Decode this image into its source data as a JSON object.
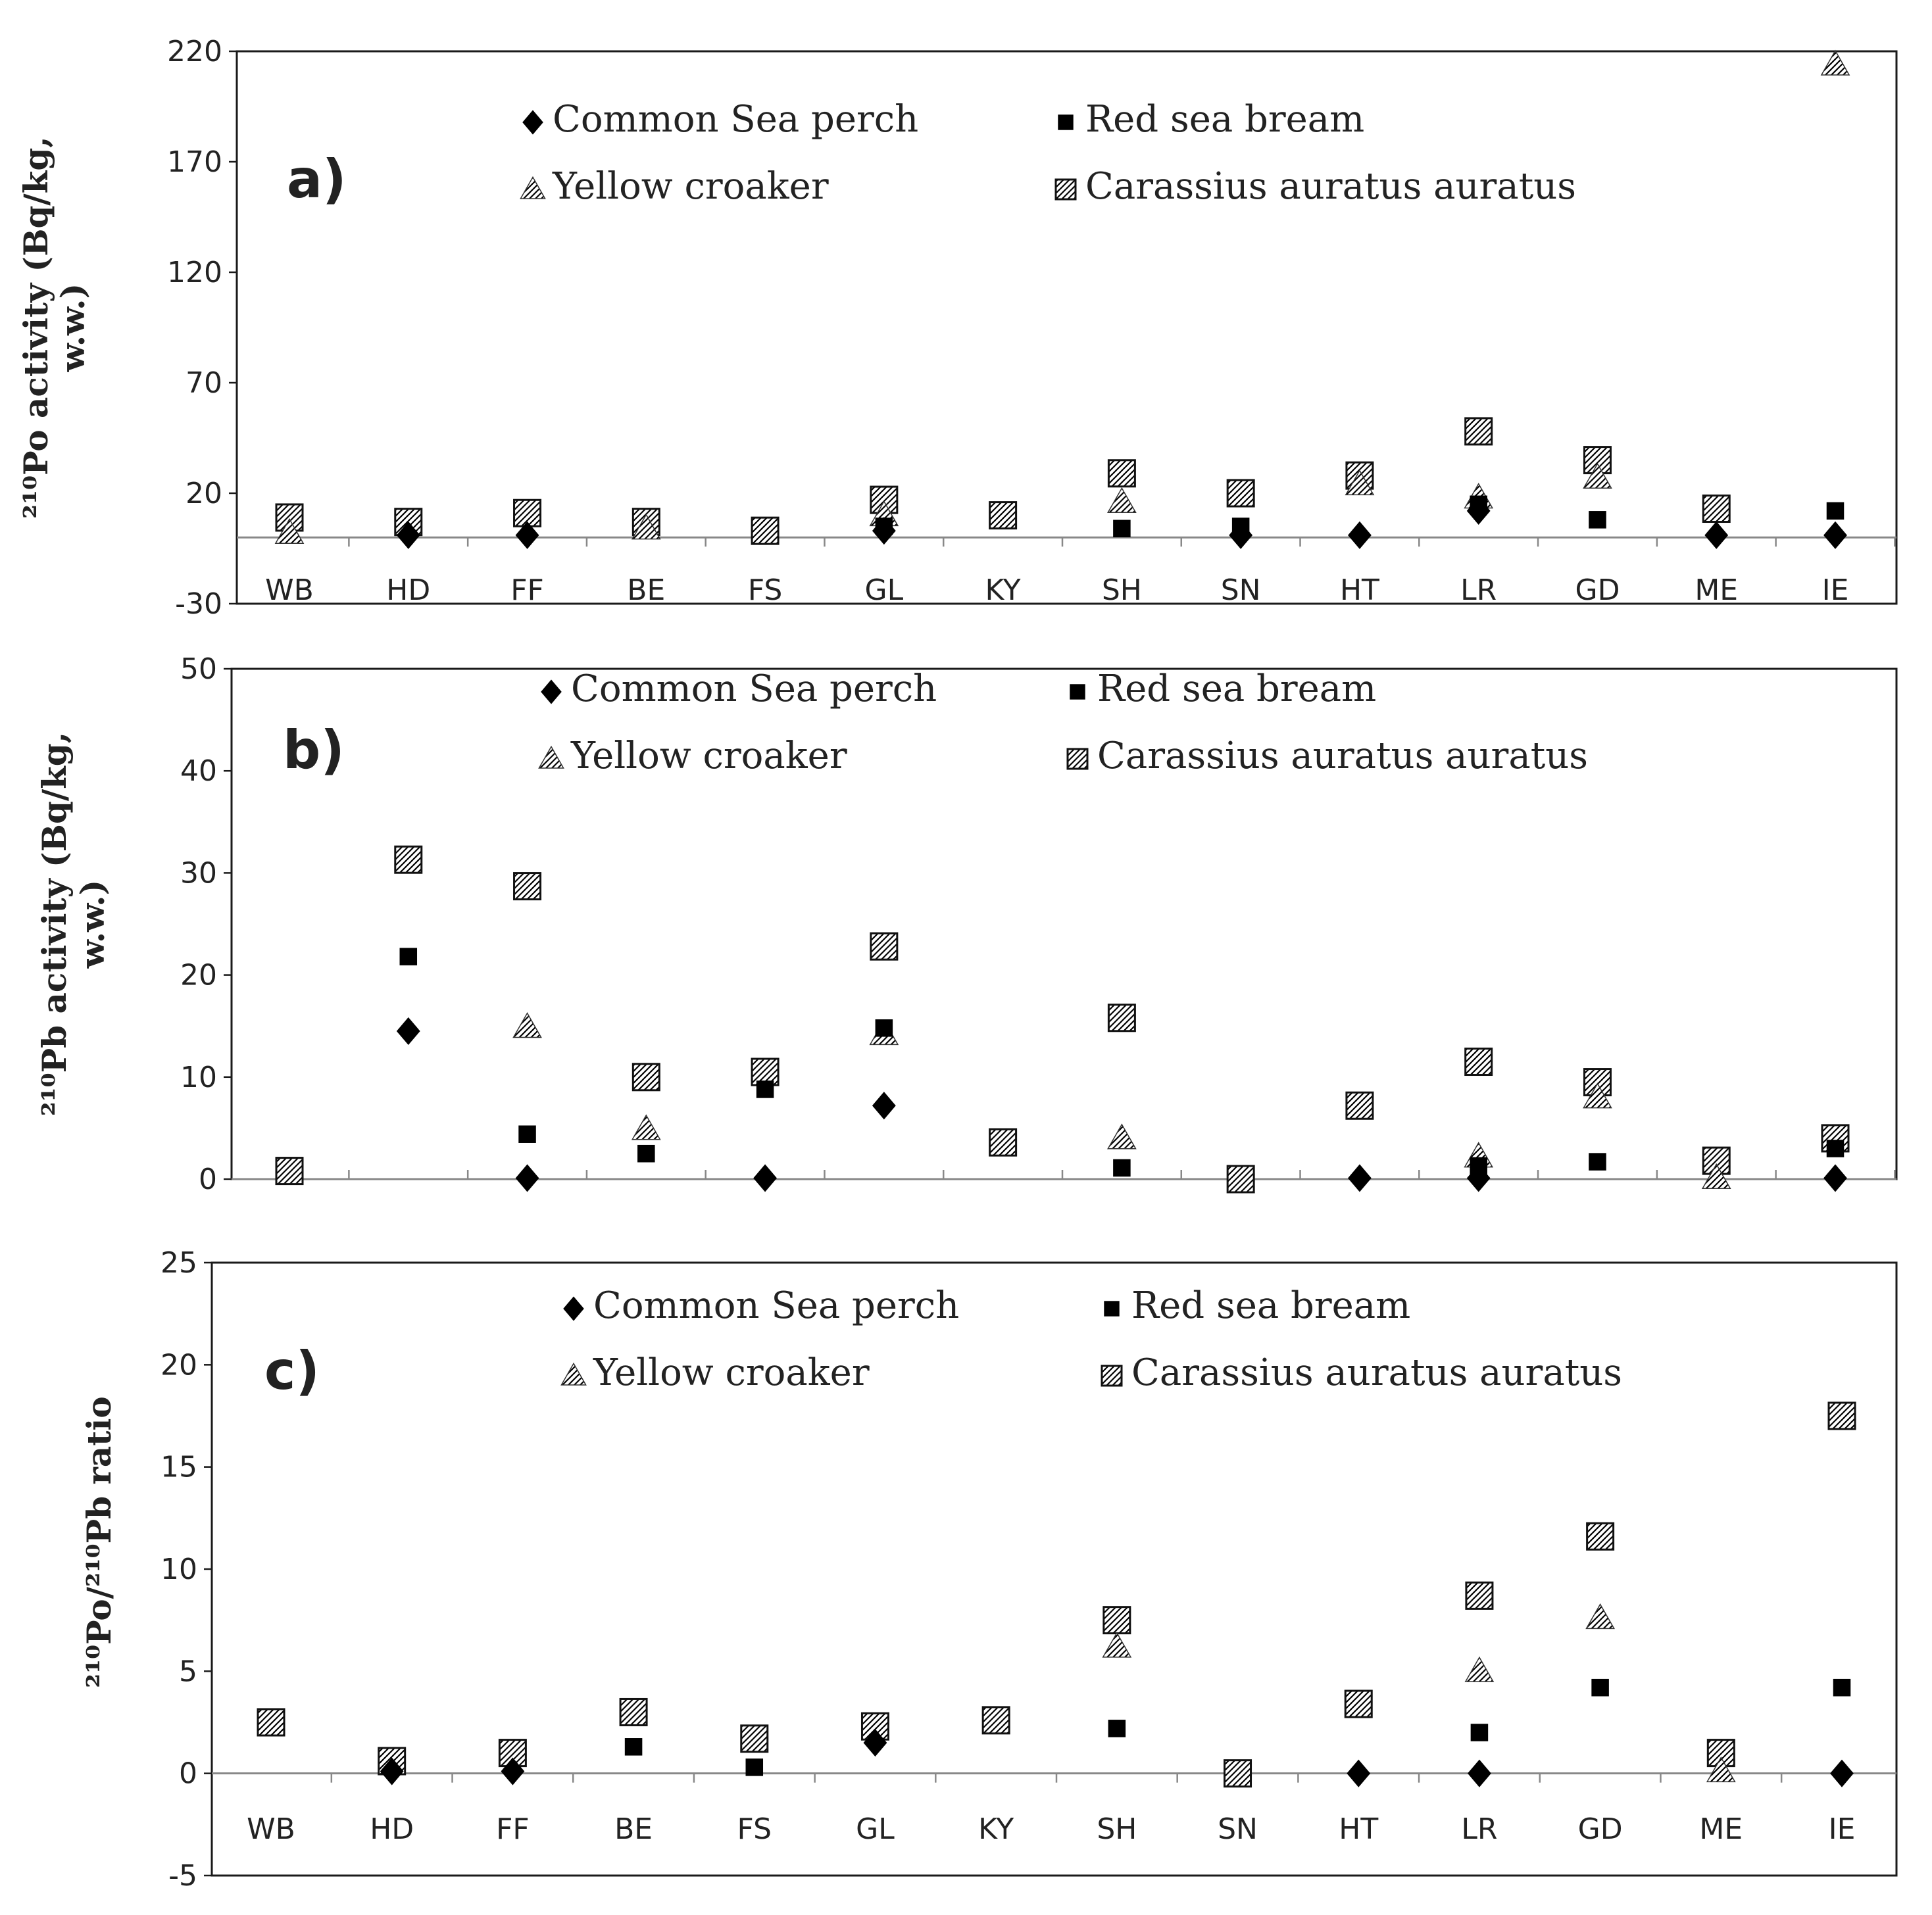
{
  "chart_data": [
    {
      "type": "scatter",
      "panel_label": "a)",
      "ylabel_lines": [
        "²¹⁰Po activity (Bq/kg,",
        "w.w.)"
      ],
      "ylim": [
        -30,
        220
      ],
      "yticks": [
        -30,
        20,
        70,
        120,
        170,
        220
      ],
      "ytick_labels": [
        "-30",
        "20",
        "70",
        "120",
        "170",
        "220"
      ],
      "categories": [
        "WB",
        "HD",
        "FF",
        "BE",
        "FS",
        "GL",
        "KY",
        "SH",
        "SN",
        "HT",
        "LR",
        "GD",
        "ME",
        "IE"
      ],
      "series": [
        {
          "name": "Common Sea perch",
          "marker": "diamond",
          "values": [
            null,
            1,
            1,
            null,
            null,
            3,
            null,
            null,
            1,
            1,
            12,
            null,
            1,
            1
          ]
        },
        {
          "name": "Red sea bream",
          "marker": "square",
          "values": [
            null,
            null,
            null,
            null,
            null,
            5,
            null,
            4,
            5,
            null,
            15,
            8,
            null,
            12
          ]
        },
        {
          "name": "Yellow croaker",
          "marker": "triangle",
          "values": [
            2,
            null,
            null,
            4,
            null,
            10,
            null,
            16,
            null,
            24,
            18,
            27,
            null,
            214
          ]
        },
        {
          "name": "Carassius auratus auratus",
          "marker": "hatched",
          "values": [
            9,
            7,
            11,
            7,
            3,
            17,
            10,
            29,
            20,
            28,
            48,
            35,
            13,
            null
          ]
        }
      ]
    },
    {
      "type": "scatter",
      "panel_label": "b)",
      "ylabel_lines": [
        "²¹⁰Pb activity (Bq/kg,",
        "w.w.)"
      ],
      "ylim": [
        0,
        50
      ],
      "yticks": [
        0,
        10,
        20,
        30,
        40,
        50
      ],
      "ytick_labels": [
        "0",
        "10",
        "20",
        "30",
        "40",
        "50"
      ],
      "categories": [
        "WB",
        "HD",
        "FF",
        "BE",
        "FS",
        "GL",
        "KY",
        "SH",
        "SN",
        "HT",
        "LR",
        "GD",
        "ME",
        "IE"
      ],
      "series": [
        {
          "name": "Common Sea perch",
          "marker": "diamond",
          "values": [
            null,
            14.5,
            0.1,
            null,
            0.1,
            7.2,
            null,
            null,
            null,
            0.1,
            0.1,
            null,
            null,
            0.1
          ]
        },
        {
          "name": "Red sea bream",
          "marker": "square",
          "values": [
            null,
            21.8,
            4.4,
            2.5,
            8.8,
            14.8,
            null,
            1.1,
            null,
            null,
            1.3,
            1.7,
            null,
            3
          ]
        },
        {
          "name": "Yellow croaker",
          "marker": "triangle",
          "values": [
            null,
            null,
            14.9,
            4.9,
            null,
            14.2,
            null,
            4,
            null,
            null,
            2.2,
            8,
            0.1,
            null
          ]
        },
        {
          "name": "Carassius auratus auratus",
          "marker": "hatched",
          "values": [
            0.8,
            31.3,
            28.7,
            10,
            10.5,
            22.8,
            3.6,
            15.8,
            0,
            7.2,
            11.5,
            9.5,
            1.8,
            4
          ]
        }
      ]
    },
    {
      "type": "scatter",
      "panel_label": "c)",
      "ylabel_lines": [
        "²¹⁰Po/²¹⁰Pb ratio"
      ],
      "ylim": [
        -5,
        25
      ],
      "yticks": [
        -5,
        0,
        5,
        10,
        15,
        20,
        25
      ],
      "ytick_labels": [
        "-5",
        "0",
        "5",
        "10",
        "15",
        "20",
        "25"
      ],
      "categories": [
        "WB",
        "HD",
        "FF",
        "BE",
        "FS",
        "GL",
        "KY",
        "SH",
        "SN",
        "HT",
        "LR",
        "GD",
        "ME",
        "IE"
      ],
      "series": [
        {
          "name": "Common Sea perch",
          "marker": "diamond",
          "values": [
            null,
            0.1,
            0.1,
            null,
            null,
            1.5,
            null,
            null,
            null,
            0,
            0,
            null,
            null,
            0
          ]
        },
        {
          "name": "Red sea bream",
          "marker": "square",
          "values": [
            null,
            null,
            null,
            1.3,
            0.3,
            null,
            null,
            2.2,
            null,
            null,
            2,
            4.2,
            null,
            4.2
          ]
        },
        {
          "name": "Yellow croaker",
          "marker": "triangle",
          "values": [
            null,
            null,
            null,
            null,
            null,
            null,
            null,
            6.2,
            null,
            null,
            5,
            7.6,
            0.1,
            null
          ]
        },
        {
          "name": "Carassius auratus auratus",
          "marker": "hatched",
          "values": [
            2.5,
            0.6,
            1,
            3,
            1.7,
            2.3,
            2.6,
            7.5,
            0,
            3.4,
            8.7,
            11.6,
            1,
            17.5
          ]
        }
      ]
    }
  ]
}
